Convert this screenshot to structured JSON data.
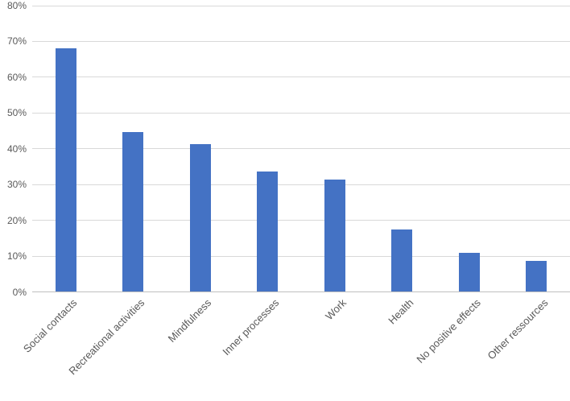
{
  "chart_data": {
    "type": "bar",
    "title": "",
    "xlabel": "",
    "ylabel": "",
    "categories": [
      "Social contacts",
      "Recreational activities",
      "Mindfulness",
      "Inner processes",
      "Work",
      "Health",
      "No positive effects",
      "Other ressources"
    ],
    "values": [
      68,
      44.7,
      41.3,
      33.7,
      31.4,
      17.4,
      11,
      8.7
    ],
    "unit": "%",
    "ylim": [
      0,
      80
    ],
    "ytick_step": 10,
    "ytick_labels": [
      "0%",
      "10%",
      "20%",
      "30%",
      "40%",
      "50%",
      "60%",
      "70%",
      "80%"
    ],
    "grid": "horizontal",
    "legend": "none",
    "colors": {
      "bar": "#4472C4",
      "gridline": "#D9D9D9",
      "axis_line": "#BFBFBF",
      "text": "#595959"
    }
  }
}
